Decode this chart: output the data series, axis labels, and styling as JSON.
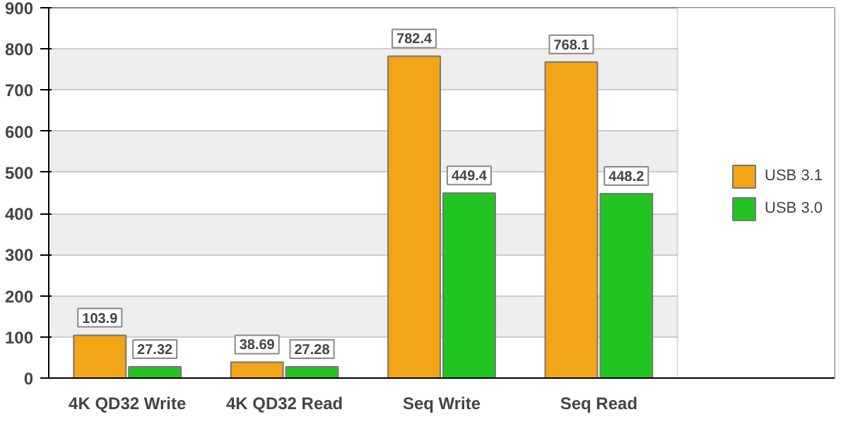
{
  "chart_data": {
    "type": "bar",
    "categories": [
      "4K QD32 Write",
      "4K QD32 Read",
      "Seq Write",
      "Seq Read"
    ],
    "series": [
      {
        "name": "USB 3.1",
        "color": "#f2a516",
        "values": [
          103.9,
          38.69,
          782.4,
          768.1
        ]
      },
      {
        "name": "USB 3.0",
        "color": "#22c422",
        "values": [
          27.32,
          27.28,
          449.4,
          448.2
        ]
      }
    ],
    "ylim": [
      0,
      900
    ],
    "yticks": [
      0,
      100,
      200,
      300,
      400,
      500,
      600,
      700,
      800,
      900
    ],
    "grid": "y",
    "legend": "right",
    "data_labels": true
  }
}
